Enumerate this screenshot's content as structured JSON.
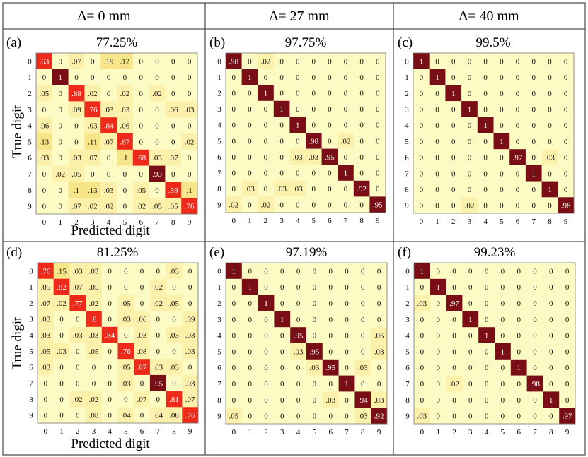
{
  "columns": [
    "Δ= 0 mm",
    "Δ= 27 mm",
    "Δ= 40 mm"
  ],
  "axes": {
    "xlabel": "Predicted digit",
    "ylabel": "True digit"
  },
  "tick_labels": [
    "0",
    "1",
    "2",
    "3",
    "4",
    "5",
    "6",
    "7",
    "8",
    "9"
  ],
  "colors": {
    "low": "#fdfbc2",
    "mid": "#f6e98e",
    "high_red": "#ee2a1a",
    "dark": "#7a0e16",
    "border": "#555555"
  },
  "chart_data": [
    {
      "type": "heatmap",
      "panel": "(a)",
      "title": "77.25%",
      "xlabel": "Predicted digit",
      "ylabel": "True digit",
      "x": [
        "0",
        "1",
        "2",
        "3",
        "4",
        "5",
        "6",
        "7",
        "8",
        "9"
      ],
      "y": [
        "0",
        "1",
        "2",
        "3",
        "4",
        "5",
        "6",
        "7",
        "8",
        "9"
      ],
      "labels": [
        [
          ".63",
          "0",
          ".07",
          "0",
          ".19",
          ".12",
          "0",
          "0",
          "0",
          "0"
        ],
        [
          "0",
          "1",
          "0",
          "0",
          "0",
          "0",
          "0",
          "0",
          "0",
          "0"
        ],
        [
          ".05",
          "0",
          ".88",
          ".02",
          "0",
          ".02",
          "0",
          ".02",
          "0",
          "0"
        ],
        [
          "0",
          "0",
          ".09",
          ".76",
          ".03",
          ".03",
          "0",
          "0",
          ".06",
          ".03"
        ],
        [
          ".06",
          "0",
          "0",
          ".03",
          ".84",
          ".06",
          "0",
          "0",
          "0",
          "0"
        ],
        [
          ".13",
          "0",
          "0",
          ".11",
          ".07",
          ".67",
          "0",
          "0",
          "0",
          ".02"
        ],
        [
          ".03",
          "0",
          ".03",
          ".07",
          "0",
          ".1",
          ".68",
          ".03",
          ".07",
          "0"
        ],
        [
          "0",
          ".02",
          ".05",
          "0",
          "0",
          "0",
          "0",
          ".93",
          "0",
          "0"
        ],
        [
          "0",
          "0",
          ".1",
          ".13",
          ".03",
          "0",
          ".05",
          "0",
          ".59",
          ".1"
        ],
        [
          "0",
          "0",
          ".07",
          ".02",
          ".02",
          "0",
          ".02",
          ".05",
          ".05",
          ".76"
        ]
      ]
    },
    {
      "type": "heatmap",
      "panel": "(b)",
      "title": "97.75%",
      "x": [
        "0",
        "1",
        "2",
        "3",
        "4",
        "5",
        "6",
        "7",
        "8",
        "9"
      ],
      "y": [
        "0",
        "1",
        "2",
        "3",
        "4",
        "5",
        "6",
        "7",
        "8",
        "9"
      ],
      "labels": [
        [
          ".98",
          "0",
          ".02",
          "0",
          "0",
          "0",
          "0",
          "0",
          "0",
          "0"
        ],
        [
          "0",
          "1",
          "0",
          "0",
          "0",
          "0",
          "0",
          "0",
          "0",
          "0"
        ],
        [
          "0",
          "0",
          "1",
          "0",
          "0",
          "0",
          "0",
          "0",
          "0",
          "0"
        ],
        [
          "0",
          "0",
          "0",
          "1",
          "0",
          "0",
          "0",
          "0",
          "0",
          "0"
        ],
        [
          "0",
          "0",
          "0",
          "0",
          "1",
          "0",
          "0",
          "0",
          "0",
          "0"
        ],
        [
          "0",
          "0",
          "0",
          "0",
          "0",
          ".98",
          "0",
          ".02",
          "0",
          "0"
        ],
        [
          "0",
          "0",
          "0",
          "0",
          ".03",
          ".03",
          ".95",
          "0",
          "0",
          "0"
        ],
        [
          "0",
          "0",
          "0",
          "0",
          "0",
          "0",
          "0",
          "1",
          "0",
          "0"
        ],
        [
          "0",
          ".03",
          "0",
          ".03",
          ".03",
          "0",
          "0",
          "0",
          ".92",
          "0"
        ],
        [
          ".02",
          "0",
          ".02",
          "0",
          "0",
          "0",
          "0",
          "0",
          "0",
          ".95"
        ]
      ]
    },
    {
      "type": "heatmap",
      "panel": "(c)",
      "title": "99.5%",
      "x": [
        "0",
        "1",
        "2",
        "3",
        "4",
        "5",
        "6",
        "7",
        "8",
        "9"
      ],
      "y": [
        "0",
        "1",
        "2",
        "3",
        "4",
        "5",
        "6",
        "7",
        "8",
        "9"
      ],
      "labels": [
        [
          "1",
          "0",
          "0",
          "0",
          "0",
          "0",
          "0",
          "0",
          "0",
          "0"
        ],
        [
          "0",
          "1",
          "0",
          "0",
          "0",
          "0",
          "0",
          "0",
          "0",
          "0"
        ],
        [
          "0",
          "0",
          "1",
          "0",
          "0",
          "0",
          "0",
          "0",
          "0",
          "0"
        ],
        [
          "0",
          "0",
          "0",
          "1",
          "0",
          "0",
          "0",
          "0",
          "0",
          "0"
        ],
        [
          "0",
          "0",
          "0",
          "0",
          "1",
          "0",
          "0",
          "0",
          "0",
          "0"
        ],
        [
          "0",
          "0",
          "0",
          "0",
          "0",
          "1",
          "0",
          "0",
          "0",
          "0"
        ],
        [
          "0",
          "0",
          "0",
          "0",
          "0",
          "0",
          ".97",
          "0",
          ".03",
          "0"
        ],
        [
          "0",
          "0",
          "0",
          "0",
          "0",
          "0",
          "0",
          "1",
          "0",
          "0"
        ],
        [
          "0",
          "0",
          "0",
          "0",
          "0",
          "0",
          "0",
          "0",
          "1",
          "0"
        ],
        [
          "0",
          "0",
          "0",
          ".02",
          "0",
          "0",
          "0",
          "0",
          "0",
          ".98"
        ]
      ]
    },
    {
      "type": "heatmap",
      "panel": "(d)",
      "title": "81.25%",
      "xlabel": "Predicted digit",
      "ylabel": "True digit",
      "x": [
        "0",
        "1",
        "2",
        "3",
        "4",
        "5",
        "6",
        "7",
        "8",
        "9"
      ],
      "y": [
        "0",
        "1",
        "2",
        "3",
        "4",
        "5",
        "6",
        "7",
        "8",
        "9"
      ],
      "labels": [
        [
          ".76",
          ".15",
          ".03",
          ".03",
          "0",
          "0",
          "0",
          "0",
          ".03",
          "0"
        ],
        [
          ".05",
          ".82",
          ".07",
          ".05",
          "0",
          "0",
          "0",
          ".02",
          "0",
          "0"
        ],
        [
          ".07",
          ".02",
          ".77",
          ".02",
          "0",
          ".05",
          "0",
          ".02",
          ".05",
          "0"
        ],
        [
          ".03",
          "0",
          "0",
          ".8",
          "0",
          ".03",
          ".06",
          "0",
          "0",
          ".09"
        ],
        [
          ".03",
          "0",
          ".03",
          ".03",
          ".84",
          "0",
          ".03",
          "0",
          ".03",
          ".03"
        ],
        [
          ".05",
          ".03",
          "0",
          ".05",
          "0",
          ".76",
          ".08",
          "0",
          "0",
          ".03"
        ],
        [
          ".03",
          "0",
          "0",
          "0",
          "0",
          ".05",
          ".87",
          ".03",
          ".03",
          "0"
        ],
        [
          "0",
          "0",
          "0",
          "0",
          "0",
          ".03",
          "0",
          ".95",
          "0",
          ".03"
        ],
        [
          "0",
          "0",
          ".02",
          ".02",
          "0",
          "0",
          ".07",
          "0",
          ".81",
          ".07"
        ],
        [
          "0",
          "0",
          "0",
          ".08",
          "0",
          ".04",
          "0",
          ".04",
          ".08",
          ".76"
        ]
      ]
    },
    {
      "type": "heatmap",
      "panel": "(e)",
      "title": "97.19%",
      "x": [
        "0",
        "1",
        "2",
        "3",
        "4",
        "5",
        "6",
        "7",
        "8",
        "9"
      ],
      "y": [
        "0",
        "1",
        "2",
        "3",
        "4",
        "5",
        "6",
        "7",
        "8",
        "9"
      ],
      "labels": [
        [
          "1",
          "0",
          "0",
          "0",
          "0",
          "0",
          "0",
          "0",
          "0",
          "0"
        ],
        [
          "0",
          "1",
          "0",
          "0",
          "0",
          "0",
          "0",
          "0",
          "0",
          "0"
        ],
        [
          "0",
          "0",
          "1",
          "0",
          "0",
          "0",
          "0",
          "0",
          "0",
          "0"
        ],
        [
          "0",
          "0",
          "0",
          "1",
          "0",
          "0",
          "0",
          "0",
          "0",
          "0"
        ],
        [
          "0",
          "0",
          "0",
          "0",
          ".95",
          "0",
          "0",
          "0",
          "0",
          ".05"
        ],
        [
          "0",
          "0",
          "0",
          "0",
          ".03",
          ".95",
          "0",
          "0",
          "0",
          ".03"
        ],
        [
          "0",
          "0",
          "0",
          "0",
          "0",
          ".03",
          ".95",
          "0",
          ".03",
          "0"
        ],
        [
          "0",
          "0",
          "0",
          "0",
          "0",
          "0",
          "0",
          "1",
          "0",
          "0"
        ],
        [
          "0",
          "0",
          "0",
          "0",
          "0",
          "0",
          ".03",
          "0",
          ".94",
          ".03"
        ],
        [
          ".05",
          "0",
          "0",
          "0",
          "0",
          "0",
          "0",
          "0",
          ".03",
          ".92"
        ]
      ]
    },
    {
      "type": "heatmap",
      "panel": "(f)",
      "title": "99.23%",
      "x": [
        "0",
        "1",
        "2",
        "3",
        "4",
        "5",
        "6",
        "7",
        "8",
        "9"
      ],
      "y": [
        "0",
        "1",
        "2",
        "3",
        "4",
        "5",
        "6",
        "7",
        "8",
        "9"
      ],
      "labels": [
        [
          "1",
          "0",
          "0",
          "0",
          "0",
          "0",
          "0",
          "0",
          "0",
          "0"
        ],
        [
          "0",
          "1",
          "0",
          "0",
          "0",
          "0",
          "0",
          "0",
          "0",
          "0"
        ],
        [
          ".03",
          "0",
          ".97",
          "0",
          "0",
          "0",
          "0",
          "0",
          "0",
          "0"
        ],
        [
          "0",
          "0",
          "0",
          "1",
          "0",
          "0",
          "0",
          "0",
          "0",
          "0"
        ],
        [
          "0",
          "0",
          "0",
          "0",
          "1",
          "0",
          "0",
          "0",
          "0",
          "0"
        ],
        [
          "0",
          "0",
          "0",
          "0",
          "0",
          "1",
          "0",
          "0",
          "0",
          "0"
        ],
        [
          "0",
          "0",
          "0",
          "0",
          "0",
          "0",
          "1",
          "0",
          "0",
          "0"
        ],
        [
          "0",
          "0",
          ".02",
          "0",
          "0",
          "0",
          "0",
          ".98",
          "0",
          "0"
        ],
        [
          "0",
          "0",
          "0",
          "0",
          "0",
          "0",
          "0",
          "0",
          "1",
          "0"
        ],
        [
          ".03",
          "0",
          "0",
          "0",
          "0",
          "0",
          "0",
          "0",
          "0",
          ".97"
        ]
      ]
    }
  ]
}
